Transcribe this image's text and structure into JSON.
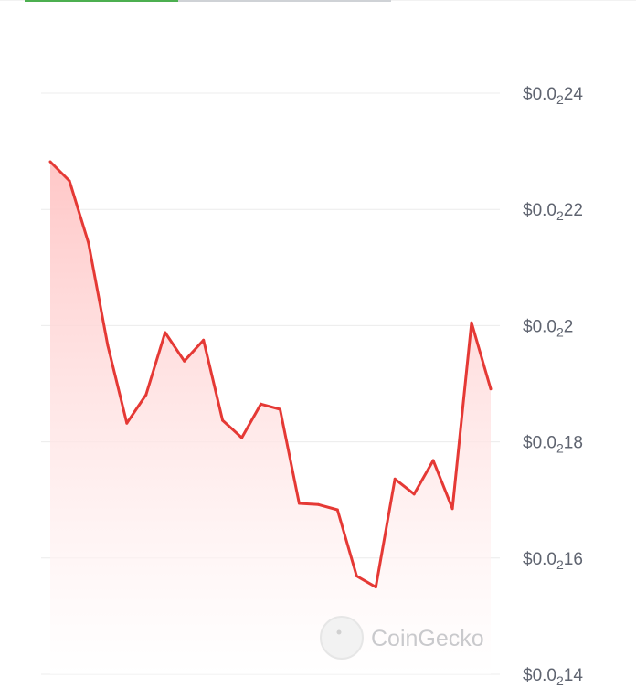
{
  "top_progress": {
    "percent": 42,
    "fill_color": "#4caf50",
    "track_color": "#cfd2d6"
  },
  "watermark": {
    "text": "CoinGecko"
  },
  "chart_data": {
    "type": "area",
    "title": "",
    "xlabel": "",
    "ylabel": "",
    "ylim": [
      0.0014,
      0.0024
    ],
    "y_axis_position": "right",
    "grid": true,
    "line_color": "#e53935",
    "fill_color": "#ffcdd2",
    "yticks": [
      {
        "value": 0.0024,
        "prefix": "$0.0",
        "sub": "2",
        "suffix": "24"
      },
      {
        "value": 0.0022,
        "prefix": "$0.0",
        "sub": "2",
        "suffix": "22"
      },
      {
        "value": 0.002,
        "prefix": "$0.0",
        "sub": "2",
        "suffix": "2"
      },
      {
        "value": 0.0018,
        "prefix": "$0.0",
        "sub": "2",
        "suffix": "18"
      },
      {
        "value": 0.0016,
        "prefix": "$0.0",
        "sub": "2",
        "suffix": "16"
      },
      {
        "value": 0.0014,
        "prefix": "$0.0",
        "sub": "2",
        "suffix": "14"
      }
    ],
    "values": [
      0.002282,
      0.002249,
      0.002142,
      0.001966,
      0.001832,
      0.001881,
      0.001988,
      0.001939,
      0.001975,
      0.001837,
      0.001807,
      0.001865,
      0.001856,
      0.001694,
      0.001692,
      0.001683,
      0.001569,
      0.00155,
      0.001736,
      0.00171,
      0.001768,
      0.001685,
      0.002005,
      0.001891
    ]
  }
}
